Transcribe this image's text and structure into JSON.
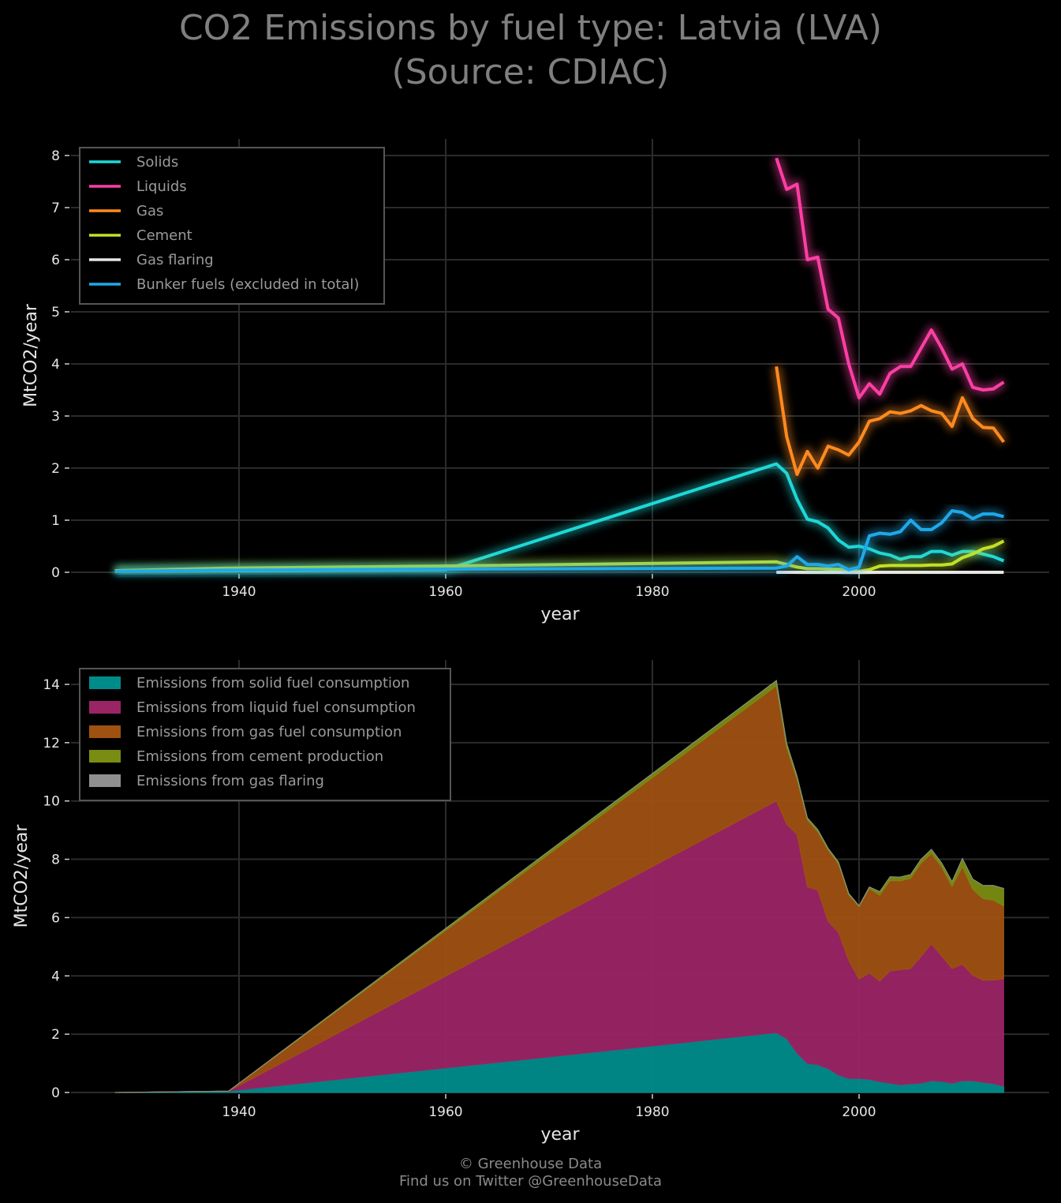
{
  "title_line1": "CO2 Emissions by fuel type: Latvia (LVA)",
  "title_line2": "(Source: CDIAC)",
  "footer_line1": "© Greenhouse Data",
  "footer_line2": "Find us on Twitter @GreenhouseData",
  "chart_data": [
    {
      "type": "line",
      "xlabel": "year",
      "ylabel": "MtCO2/year",
      "xlim": [
        1925,
        2019
      ],
      "ylim": [
        0,
        8.3
      ],
      "xticks": [
        1940,
        1960,
        1980,
        2000
      ],
      "yticks": [
        0,
        1,
        2,
        3,
        4,
        5,
        6,
        7,
        8
      ],
      "grid": true,
      "legend_position": "top-left",
      "series": [
        {
          "name": "Solids",
          "color": "#1ed8d8",
          "x": [
            1928,
            1939,
            1960,
            1992,
            1993,
            1994,
            1995,
            1996,
            1997,
            1998,
            1999,
            2000,
            2001,
            2002,
            2003,
            2004,
            2005,
            2006,
            2007,
            2008,
            2009,
            2010,
            2011,
            2012,
            2013,
            2014
          ],
          "y": [
            0.02,
            0.03,
            0.05,
            2.08,
            1.9,
            1.4,
            1.02,
            0.97,
            0.85,
            0.62,
            0.48,
            0.5,
            0.45,
            0.37,
            0.33,
            0.25,
            0.3,
            0.3,
            0.4,
            0.4,
            0.33,
            0.4,
            0.4,
            0.35,
            0.3,
            0.22
          ]
        },
        {
          "name": "Liquids",
          "color": "#ff3ea5",
          "x": [
            1992,
            1993,
            1994,
            1995,
            1996,
            1997,
            1998,
            1999,
            2000,
            2001,
            2002,
            2003,
            2004,
            2005,
            2006,
            2007,
            2008,
            2009,
            2010,
            2011,
            2012,
            2013,
            2014
          ],
          "y": [
            7.95,
            7.35,
            7.45,
            6.0,
            6.05,
            5.05,
            4.88,
            4.0,
            3.35,
            3.62,
            3.42,
            3.82,
            3.95,
            3.95,
            4.3,
            4.65,
            4.3,
            3.9,
            4.0,
            3.55,
            3.5,
            3.52,
            3.65
          ]
        },
        {
          "name": "Gas",
          "color": "#ff8a1f",
          "x": [
            1992,
            1993,
            1994,
            1995,
            1996,
            1997,
            1998,
            1999,
            2000,
            2001,
            2002,
            2003,
            2004,
            2005,
            2006,
            2007,
            2008,
            2009,
            2010,
            2011,
            2012,
            2013,
            2014
          ],
          "y": [
            3.95,
            2.6,
            1.88,
            2.32,
            2.0,
            2.42,
            2.35,
            2.25,
            2.5,
            2.9,
            2.95,
            3.08,
            3.05,
            3.1,
            3.2,
            3.1,
            3.05,
            2.8,
            3.35,
            2.95,
            2.78,
            2.77,
            2.5
          ]
        },
        {
          "name": "Cement",
          "color": "#c0e02a",
          "x": [
            1928,
            1939,
            1960,
            1992,
            1993,
            1994,
            1995,
            1996,
            1997,
            1998,
            1999,
            2000,
            2001,
            2002,
            2003,
            2004,
            2005,
            2006,
            2007,
            2008,
            2009,
            2010,
            2011,
            2012,
            2013,
            2014
          ],
          "y": [
            0.03,
            0.08,
            0.12,
            0.2,
            0.15,
            0.1,
            0.07,
            0.07,
            0.06,
            0.06,
            0.05,
            0.02,
            0.05,
            0.12,
            0.13,
            0.13,
            0.13,
            0.13,
            0.14,
            0.14,
            0.16,
            0.28,
            0.35,
            0.45,
            0.5,
            0.6
          ]
        },
        {
          "name": "Gas flaring",
          "color": "#e6e6e6",
          "x": [
            1992,
            2014
          ],
          "y": [
            0.0,
            0.0
          ]
        },
        {
          "name": "Bunker fuels (excluded in total)",
          "color": "#1fa9e8",
          "x": [
            1928,
            1939,
            1960,
            1992,
            1993,
            1994,
            1995,
            1996,
            1997,
            1998,
            1999,
            2000,
            2001,
            2002,
            2003,
            2004,
            2005,
            2006,
            2007,
            2008,
            2009,
            2010,
            2011,
            2012,
            2013,
            2014
          ],
          "y": [
            0.02,
            0.04,
            0.06,
            0.08,
            0.12,
            0.3,
            0.15,
            0.15,
            0.12,
            0.15,
            0.05,
            0.1,
            0.7,
            0.75,
            0.73,
            0.78,
            1.0,
            0.82,
            0.82,
            0.95,
            1.18,
            1.15,
            1.03,
            1.12,
            1.12,
            1.07
          ]
        }
      ]
    },
    {
      "type": "area",
      "stacked": true,
      "xlabel": "year",
      "ylabel": "MtCO2/year",
      "xlim": [
        1925,
        2019
      ],
      "ylim": [
        0,
        14.8
      ],
      "xticks": [
        1940,
        1960,
        1980,
        2000
      ],
      "yticks": [
        0,
        2,
        4,
        6,
        8,
        10,
        12,
        14
      ],
      "grid": true,
      "legend_position": "top-left",
      "x": [
        1928,
        1939,
        1992,
        1993,
        1994,
        1995,
        1996,
        1997,
        1998,
        1999,
        2000,
        2001,
        2002,
        2003,
        2004,
        2005,
        2006,
        2007,
        2008,
        2009,
        2010,
        2011,
        2012,
        2013,
        2014
      ],
      "series": [
        {
          "name": "Emissions from solid fuel consumption",
          "color": "#008b8b",
          "values": [
            0.0,
            0.05,
            2.05,
            1.85,
            1.35,
            1.0,
            0.95,
            0.82,
            0.6,
            0.48,
            0.48,
            0.45,
            0.37,
            0.32,
            0.26,
            0.3,
            0.32,
            0.4,
            0.38,
            0.32,
            0.4,
            0.4,
            0.35,
            0.3,
            0.22
          ]
        },
        {
          "name": "Emissions from liquid fuel consumption",
          "color": "#9b2465",
          "values": [
            0.0,
            0.0,
            7.95,
            7.35,
            7.5,
            6.05,
            6.0,
            5.05,
            4.9,
            4.05,
            3.4,
            3.65,
            3.45,
            3.85,
            3.95,
            3.95,
            4.35,
            4.7,
            4.3,
            3.93,
            4.0,
            3.62,
            3.5,
            3.55,
            3.68
          ]
        },
        {
          "name": "Emissions from gas fuel consumption",
          "color": "#9f5112",
          "values": [
            0.0,
            0.0,
            3.95,
            2.62,
            1.9,
            2.3,
            2.0,
            2.45,
            2.35,
            2.25,
            2.5,
            2.9,
            2.95,
            3.1,
            3.05,
            3.1,
            3.2,
            3.1,
            3.05,
            2.82,
            3.35,
            2.95,
            2.8,
            2.75,
            2.5
          ]
        },
        {
          "name": "Emissions from cement production",
          "color": "#7a8c12",
          "values": [
            0.0,
            0.0,
            0.18,
            0.15,
            0.1,
            0.07,
            0.07,
            0.06,
            0.06,
            0.05,
            0.02,
            0.05,
            0.12,
            0.13,
            0.13,
            0.13,
            0.13,
            0.14,
            0.14,
            0.16,
            0.28,
            0.35,
            0.45,
            0.5,
            0.6
          ]
        },
        {
          "name": "Emissions from gas flaring",
          "color": "#8f8f8f",
          "values": [
            0.0,
            0.0,
            0.0,
            0.0,
            0.0,
            0.0,
            0.0,
            0.0,
            0.0,
            0.0,
            0.0,
            0.0,
            0.0,
            0.0,
            0.0,
            0.0,
            0.0,
            0.0,
            0.0,
            0.0,
            0.0,
            0.0,
            0.0,
            0.0,
            0.0
          ]
        }
      ]
    }
  ]
}
